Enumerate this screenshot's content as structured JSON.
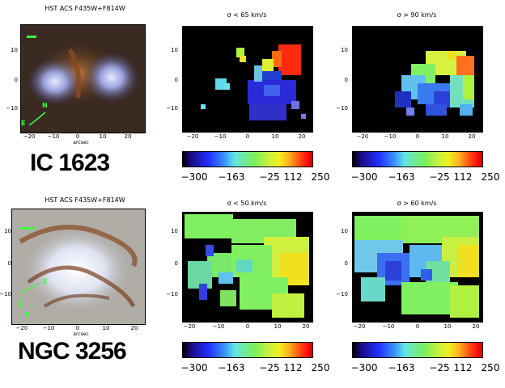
{
  "colors": {
    "background": "#ffffff",
    "plot_bg": "#000000",
    "marker": "#3dff3d"
  },
  "colorbar_ticks": [
    "−300",
    "−163",
    "−25",
    "112",
    "250"
  ],
  "rows": [
    {
      "galaxy": "IC 1623",
      "image_title": "HST ACS F435W+F814W",
      "image_xticks": [
        "−20",
        "−10",
        "0",
        "10",
        "20"
      ],
      "image_yticks": [
        "10",
        "0",
        "−10"
      ],
      "image_xlabel": "arcsec",
      "compass": [
        "N",
        "E"
      ],
      "maps": [
        {
          "title": "σ < 65 km/s",
          "xticks": [
            "−20",
            "−10",
            "0",
            "10",
            "20"
          ],
          "yticks": [
            "10",
            "0",
            "−10"
          ]
        },
        {
          "title": "σ > 90 km/s",
          "xticks": [
            "−20",
            "−10",
            "0",
            "10",
            "20"
          ],
          "yticks": [
            "10",
            "0",
            "−10"
          ]
        }
      ]
    },
    {
      "galaxy": "NGC 3256",
      "image_title": "HST ACS F435W+F814W",
      "image_xticks": [
        "−20",
        "−10",
        "0",
        "10",
        "20"
      ],
      "image_yticks": [
        "10",
        "0",
        "−10"
      ],
      "image_xlabel": "arcsec",
      "compass": [
        "E",
        "N"
      ],
      "maps": [
        {
          "title": "σ <  50 km/s",
          "xticks": [
            "−20",
            "−10",
            "0",
            "10",
            "20"
          ],
          "yticks": [
            "10",
            "0",
            "−10"
          ]
        },
        {
          "title": "σ >  60 km/s",
          "xticks": [
            "−20",
            "−10",
            "0",
            "10",
            "20"
          ],
          "yticks": [
            "10",
            "0",
            "−10"
          ]
        }
      ]
    }
  ]
}
